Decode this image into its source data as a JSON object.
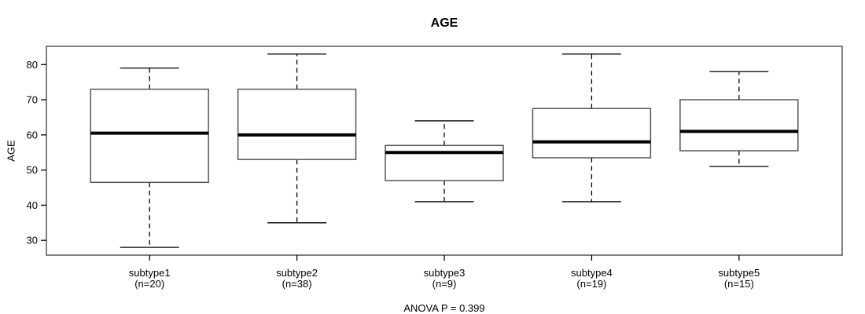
{
  "chart_data": {
    "type": "boxplot",
    "title": "AGE",
    "ylabel": "AGE",
    "xlabel": "",
    "annotation": "ANOVA P = 0.399",
    "ylim": [
      25.8,
      85.2
    ],
    "yticks": [
      30,
      40,
      50,
      60,
      70,
      80
    ],
    "grid": false,
    "legend": false,
    "whisker_style": "dashed",
    "orientation": "vertical",
    "categories": [
      "subtype1",
      "subtype2",
      "subtype3",
      "subtype4",
      "subtype5"
    ],
    "groups": [
      {
        "label": "subtype1",
        "sublabel": "(n=20)",
        "n": 20,
        "whisker_low": 28,
        "q1": 46.5,
        "median": 60.5,
        "q3": 73,
        "whisker_high": 79
      },
      {
        "label": "subtype2",
        "sublabel": "(n=38)",
        "n": 38,
        "whisker_low": 35,
        "q1": 53,
        "median": 60,
        "q3": 73,
        "whisker_high": 83
      },
      {
        "label": "subtype3",
        "sublabel": "(n=9)",
        "n": 9,
        "whisker_low": 41,
        "q1": 47,
        "median": 55,
        "q3": 57,
        "whisker_high": 64
      },
      {
        "label": "subtype4",
        "sublabel": "(n=19)",
        "n": 19,
        "whisker_low": 41,
        "q1": 53.5,
        "median": 58,
        "q3": 67.5,
        "whisker_high": 83
      },
      {
        "label": "subtype5",
        "sublabel": "(n=15)",
        "n": 15,
        "whisker_low": 51,
        "q1": 55.5,
        "median": 61,
        "q3": 70,
        "whisker_high": 78
      }
    ],
    "colors": {
      "line": "#000000",
      "median": "#000000",
      "box_border": "#555555",
      "plot_border": "#555555",
      "box_fill": "#ffffff",
      "background": "#ffffff",
      "text": "#000000"
    }
  }
}
